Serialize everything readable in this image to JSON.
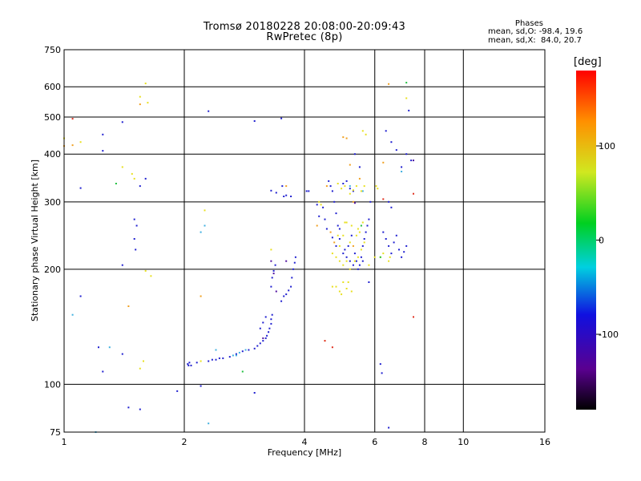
{
  "header": {
    "title_line1": "Tromsø 20180228 20:08:00-20:09:43",
    "title_line2": "RwPretec (8p)"
  },
  "phase_box": {
    "title": "Phases",
    "line1": "mean, sd,O: -98.4, 19.6",
    "line2": "mean, sd,X:  84.0, 20.7"
  },
  "colorbar": {
    "unit": "deg",
    "range": [
      -180,
      180
    ],
    "tick_labels": [
      "100",
      "0",
      "-100"
    ],
    "tick_values": [
      100,
      0,
      -100
    ]
  },
  "chart_data": {
    "type": "scatter",
    "xlabel": "Frequency [MHz]",
    "ylabel": "Stationary phase Virtual Height [km]",
    "xscale": "log",
    "yscale": "log",
    "xlim": [
      1,
      16
    ],
    "ylim": [
      75,
      750
    ],
    "x_ticks": [
      1,
      2,
      4,
      6,
      8,
      10,
      16
    ],
    "x_tick_labels": [
      "1",
      "2",
      "4",
      "6",
      "8",
      "10",
      "16"
    ],
    "y_ticks": [
      75,
      100,
      200,
      300,
      400,
      500,
      600,
      750
    ],
    "y_tick_labels": [
      "75",
      "100",
      "200",
      "300",
      "400",
      "500",
      "600",
      "750"
    ],
    "grid": true,
    "color_encodes": "phase (deg)",
    "series": [
      {
        "color": "#2020d0",
        "points": [
          [
            2.04,
            113
          ],
          [
            2.06,
            114
          ],
          [
            2.08,
            112
          ],
          [
            2.15,
            114
          ],
          [
            2.3,
            115
          ],
          [
            2.35,
            116
          ],
          [
            2.4,
            116
          ],
          [
            2.45,
            117
          ],
          [
            2.5,
            117
          ],
          [
            2.6,
            118
          ],
          [
            2.7,
            120
          ],
          [
            2.8,
            122
          ],
          [
            2.9,
            123
          ],
          [
            3.0,
            124
          ],
          [
            3.05,
            126
          ],
          [
            3.1,
            128
          ],
          [
            3.15,
            130
          ],
          [
            3.2,
            132
          ],
          [
            3.22,
            134
          ],
          [
            3.25,
            137
          ],
          [
            3.27,
            140
          ],
          [
            3.3,
            144
          ],
          [
            3.3,
            148
          ],
          [
            3.32,
            152
          ],
          [
            3.1,
            140
          ],
          [
            3.15,
            145
          ],
          [
            3.2,
            150
          ],
          [
            3.3,
            180
          ],
          [
            3.32,
            190
          ],
          [
            3.35,
            198
          ],
          [
            3.38,
            205
          ],
          [
            3.5,
            165
          ],
          [
            3.55,
            170
          ],
          [
            3.6,
            172
          ],
          [
            3.65,
            176
          ],
          [
            3.7,
            180
          ],
          [
            3.72,
            190
          ],
          [
            3.75,
            200
          ],
          [
            3.78,
            208
          ],
          [
            3.8,
            215
          ],
          [
            3.55,
            310
          ],
          [
            3.6,
            312
          ],
          [
            3.7,
            310
          ],
          [
            3.52,
            330
          ],
          [
            3.4,
            317
          ],
          [
            3.3,
            321
          ],
          [
            1.5,
            270
          ],
          [
            1.52,
            260
          ],
          [
            1.5,
            240
          ],
          [
            1.51,
            225
          ],
          [
            1.4,
            205
          ],
          [
            1.4,
            485
          ],
          [
            1.55,
            330
          ],
          [
            1.6,
            345
          ],
          [
            1.25,
            450
          ],
          [
            1.25,
            408
          ],
          [
            1.1,
            326
          ],
          [
            1.25,
            108
          ],
          [
            2.3,
            518
          ],
          [
            3.0,
            488
          ],
          [
            3.5,
            496
          ],
          [
            4.1,
            320
          ],
          [
            4.05,
            320
          ],
          [
            4.3,
            295
          ],
          [
            4.35,
            275
          ],
          [
            4.45,
            290
          ],
          [
            4.5,
            270
          ],
          [
            4.55,
            255
          ],
          [
            4.6,
            340
          ],
          [
            4.65,
            330
          ],
          [
            4.7,
            320
          ],
          [
            4.75,
            300
          ],
          [
            4.8,
            280
          ],
          [
            4.85,
            260
          ],
          [
            4.9,
            240
          ],
          [
            5.0,
            220
          ],
          [
            5.05,
            225
          ],
          [
            5.1,
            215
          ],
          [
            5.15,
            230
          ],
          [
            5.2,
            210
          ],
          [
            5.3,
            205
          ],
          [
            5.35,
            220
          ],
          [
            5.4,
            210
          ],
          [
            5.45,
            200
          ],
          [
            5.5,
            205
          ],
          [
            5.55,
            215
          ],
          [
            5.6,
            230
          ],
          [
            5.65,
            240
          ],
          [
            5.7,
            250
          ],
          [
            5.75,
            260
          ],
          [
            5.8,
            270
          ],
          [
            5.85,
            300
          ],
          [
            5.0,
            335
          ],
          [
            5.1,
            340
          ],
          [
            5.2,
            325
          ],
          [
            5.3,
            320
          ],
          [
            4.8,
            230
          ],
          [
            4.9,
            255
          ],
          [
            4.7,
            242
          ],
          [
            5.25,
            245
          ],
          [
            5.35,
            400
          ],
          [
            5.5,
            370
          ],
          [
            5.6,
            210
          ],
          [
            5.8,
            185
          ],
          [
            6.3,
            250
          ],
          [
            6.4,
            240
          ],
          [
            6.5,
            230
          ],
          [
            6.6,
            220
          ],
          [
            6.7,
            235
          ],
          [
            6.8,
            245
          ],
          [
            6.9,
            225
          ],
          [
            7.0,
            215
          ],
          [
            7.1,
            222
          ],
          [
            7.2,
            230
          ],
          [
            6.5,
            300
          ],
          [
            6.6,
            290
          ],
          [
            6.4,
            460
          ],
          [
            6.6,
            430
          ],
          [
            6.8,
            410
          ],
          [
            7.0,
            370
          ],
          [
            7.2,
            400
          ],
          [
            6.2,
            113
          ],
          [
            6.25,
            107
          ],
          [
            6.5,
            77
          ],
          [
            1.45,
            87
          ],
          [
            1.55,
            86
          ],
          [
            1.92,
            96
          ],
          [
            2.05,
            112
          ],
          [
            3.0,
            95
          ],
          [
            2.2,
            99
          ],
          [
            1.22,
            125
          ],
          [
            1.4,
            120
          ],
          [
            1.1,
            170
          ],
          [
            7.3,
            520
          ],
          [
            7.4,
            385
          ]
        ]
      },
      {
        "color": "#40b0e0",
        "points": [
          [
            2.4,
            123
          ],
          [
            2.65,
            119
          ],
          [
            2.7,
            119
          ],
          [
            2.75,
            121
          ],
          [
            2.85,
            123
          ],
          [
            1.3,
            125
          ],
          [
            1.05,
            152
          ],
          [
            2.2,
            250
          ],
          [
            2.25,
            260
          ],
          [
            2.3,
            79
          ],
          [
            1.2,
            75
          ],
          [
            7.0,
            360
          ],
          [
            5.6,
            320
          ],
          [
            5.2,
            330
          ]
        ]
      },
      {
        "color": "#e8e020",
        "points": [
          [
            1.6,
            612
          ],
          [
            1.55,
            565
          ],
          [
            1.62,
            545
          ],
          [
            1.4,
            370
          ],
          [
            1.48,
            355
          ],
          [
            1.5,
            345
          ],
          [
            1.6,
            198
          ],
          [
            1.65,
            192
          ],
          [
            1.58,
            115
          ],
          [
            1.55,
            110
          ],
          [
            2.2,
            115
          ],
          [
            2.25,
            285
          ],
          [
            4.85,
            335
          ],
          [
            4.95,
            325
          ],
          [
            5.05,
            330
          ],
          [
            5.2,
            315
          ],
          [
            5.3,
            322
          ],
          [
            5.4,
            330
          ],
          [
            5.55,
            320
          ],
          [
            5.65,
            330
          ],
          [
            4.7,
            220
          ],
          [
            4.8,
            215
          ],
          [
            4.9,
            210
          ],
          [
            5.0,
            205
          ],
          [
            5.1,
            210
          ],
          [
            5.2,
            200
          ],
          [
            5.35,
            210
          ],
          [
            5.45,
            215
          ],
          [
            5.55,
            225
          ],
          [
            5.65,
            235
          ],
          [
            5.4,
            245
          ],
          [
            5.5,
            250
          ],
          [
            5.2,
            235
          ],
          [
            5.0,
            245
          ],
          [
            4.9,
            230
          ],
          [
            4.85,
            245
          ],
          [
            5.05,
            265
          ],
          [
            5.1,
            265
          ],
          [
            5.25,
            260
          ],
          [
            5.45,
            255
          ],
          [
            5.6,
            265
          ],
          [
            4.8,
            180
          ],
          [
            4.9,
            175
          ],
          [
            4.95,
            172
          ],
          [
            5.0,
            185
          ],
          [
            5.1,
            178
          ],
          [
            5.15,
            185
          ],
          [
            5.25,
            175
          ],
          [
            6.0,
            215
          ],
          [
            6.2,
            215
          ],
          [
            6.3,
            220
          ],
          [
            6.5,
            210
          ],
          [
            6.55,
            215
          ],
          [
            5.8,
            205
          ],
          [
            4.7,
            180
          ],
          [
            4.35,
            300
          ],
          [
            4.4,
            295
          ],
          [
            1.1,
            430
          ],
          [
            1.0,
            440
          ],
          [
            3.3,
            225
          ],
          [
            5.7,
            450
          ],
          [
            5.6,
            460
          ],
          [
            6.05,
            330
          ],
          [
            6.1,
            325
          ],
          [
            7.2,
            560
          ]
        ]
      },
      {
        "color": "#f0a020",
        "points": [
          [
            6.5,
            610
          ],
          [
            5.0,
            443
          ],
          [
            5.1,
            440
          ],
          [
            5.5,
            345
          ],
          [
            5.2,
            375
          ],
          [
            4.65,
            250
          ],
          [
            4.75,
            235
          ],
          [
            5.3,
            230
          ],
          [
            4.55,
            330
          ],
          [
            5.3,
            300
          ],
          [
            3.6,
            330
          ],
          [
            4.3,
            260
          ],
          [
            6.3,
            380
          ],
          [
            1.45,
            160
          ],
          [
            2.2,
            170
          ],
          [
            1.55,
            540
          ],
          [
            1.0,
            420
          ],
          [
            1.05,
            422
          ],
          [
            4.5,
            130
          ]
        ]
      },
      {
        "color": "#e03020",
        "points": [
          [
            1.05,
            495
          ],
          [
            7.5,
            150
          ],
          [
            7.5,
            315
          ],
          [
            4.5,
            130
          ],
          [
            4.7,
            125
          ],
          [
            6.3,
            305
          ]
        ]
      },
      {
        "color": "#20c040",
        "points": [
          [
            2.8,
            108
          ],
          [
            1.35,
            335
          ],
          [
            7.2,
            615
          ],
          [
            5.55,
            260
          ],
          [
            6.2,
            215
          ]
        ]
      },
      {
        "color": "#5010a0",
        "points": [
          [
            3.3,
            210
          ],
          [
            3.35,
            195
          ],
          [
            3.6,
            210
          ],
          [
            3.4,
            175
          ],
          [
            7.5,
            385
          ],
          [
            5.35,
            298
          ],
          [
            3.15,
            132
          ]
        ]
      }
    ]
  }
}
